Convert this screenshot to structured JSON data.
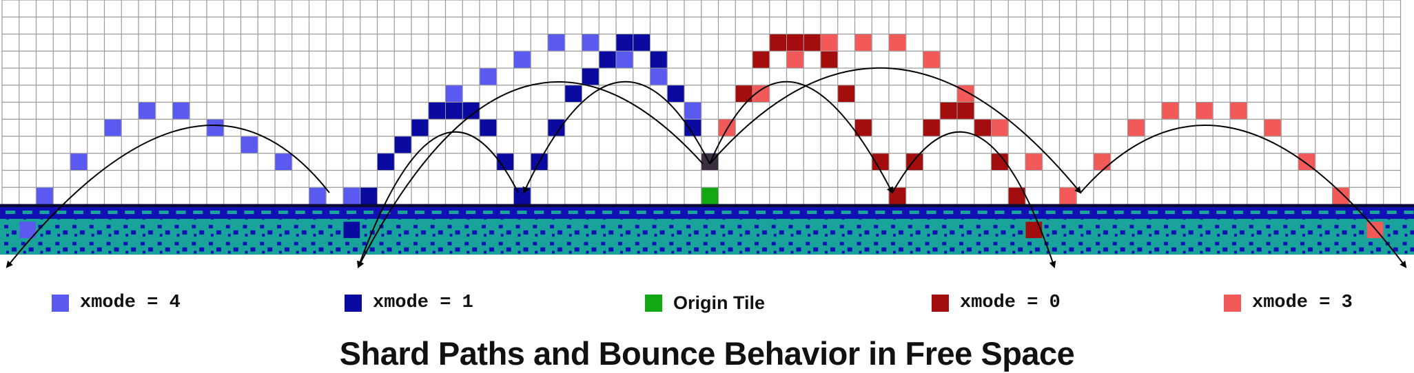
{
  "title": "Shard Paths and Bounce Behavior in Free Space",
  "legend": [
    {
      "label": "xmode = 4",
      "color": "#5a5af0",
      "mono": true
    },
    {
      "label": "xmode = 1",
      "color": "#0a0aa0",
      "mono": true
    },
    {
      "label": "Origin Tile",
      "color": "#13a813",
      "mono": false
    },
    {
      "label": "xmode = 0",
      "color": "#a30d0d",
      "mono": true
    },
    {
      "label": "xmode = 3",
      "color": "#f25a5a",
      "mono": true
    }
  ],
  "colors": {
    "grid_line": "#9a9a9a",
    "ground_teal": "#1aa39a",
    "ground_blue": "#1010b5",
    "ground_dark": "#0a0a35",
    "origin": "#13a813",
    "origin_above": "#3a2f40",
    "arrow": "#000000"
  }
}
